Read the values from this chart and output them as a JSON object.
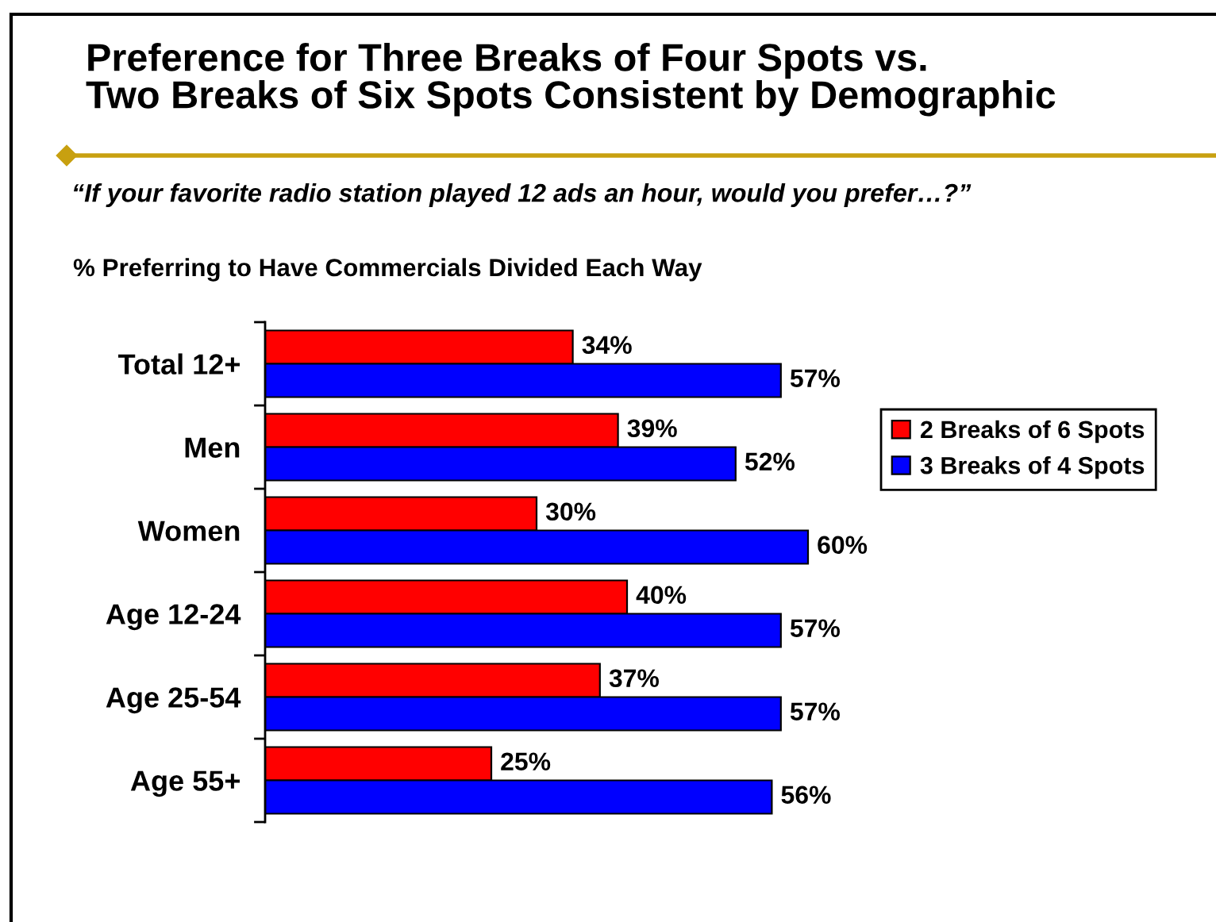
{
  "chart_data": {
    "type": "bar",
    "orientation": "horizontal",
    "title": "Preference for Three Breaks of Four Spots vs.\nTwo Breaks of Six Spots Consistent by Demographic",
    "subtitle": "“If your favorite radio station played 12 ads an hour, would you prefer…?”",
    "annotations": [
      "% Preferring to Have Commercials Divided Each Way"
    ],
    "categories": [
      "Total 12+",
      "Men",
      "Women",
      "Age 12-24",
      "Age 25-54",
      "Age 55+"
    ],
    "series": [
      {
        "name": "2 Breaks of 6 Spots",
        "color": "#ff0000",
        "values": [
          34,
          39,
          30,
          40,
          37,
          25
        ],
        "value_labels": [
          "34%",
          "39%",
          "30%",
          "40%",
          "37%",
          "25%"
        ]
      },
      {
        "name": "3 Breaks of 4 Spots",
        "color": "#0000ff",
        "values": [
          57,
          52,
          60,
          57,
          57,
          56
        ],
        "value_labels": [
          "57%",
          "52%",
          "60%",
          "57%",
          "57%",
          "56%"
        ]
      }
    ],
    "tick_labels": "y",
    "legend": "right"
  }
}
